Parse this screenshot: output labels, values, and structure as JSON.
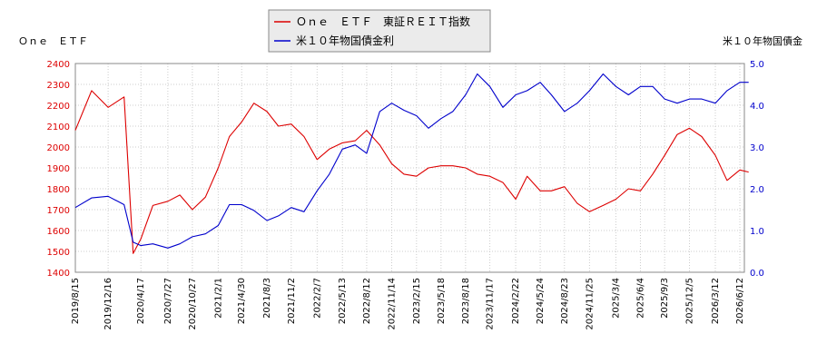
{
  "chart_data": {
    "type": "line",
    "left_axis_title": "Ｏｎｅ　ＥＴＦ",
    "right_axis_title": "米１０年物国債金",
    "legend": [
      {
        "label": "Ｏｎｅ　ＥＴＦ　東証ＲＥＩＴ指数",
        "color": "#dd0000"
      },
      {
        "label": "米１０年物国債金利",
        "color": "#0000cc"
      }
    ],
    "y_left": {
      "min": 1400,
      "max": 2400,
      "ticks": [
        "1400",
        "1500",
        "1600",
        "1700",
        "1800",
        "1900",
        "2000",
        "2100",
        "2200",
        "2300",
        "2400"
      ]
    },
    "y_right": {
      "min": 0.0,
      "max": 5.0,
      "ticks": [
        "0.0",
        "1.0",
        "2.0",
        "3.0",
        "4.0",
        "5.0"
      ]
    },
    "x_ticks": [
      "2019/8/15",
      "2019/12/16",
      "2020/4/17",
      "2020/7/27",
      "2020/10/27",
      "2021/2/1",
      "2021/4/30",
      "2021/8/3",
      "2021/11/2",
      "2022/2/7",
      "2022/5/13",
      "2022/8/12",
      "2022/11/14",
      "2023/2/15",
      "2023/5/18",
      "2023/8/18",
      "2023/11/17",
      "2024/2/22",
      "2024/5/24",
      "2024/8/23",
      "2024/11/25",
      "2025/3/4",
      "2025/6/4",
      "2025/9/3",
      "2025/12/5",
      "2026/3/12",
      "2026/6/12"
    ],
    "grid": true,
    "series": [
      {
        "name": "Ｏｎｅ　ＥＴＦ　東証ＲＥＩＴ指数",
        "color": "#dd0000",
        "axis": "left",
        "x": [
          "2019/8/15",
          "2019/10/15",
          "2019/12/16",
          "2020/2/14",
          "2020/3/19",
          "2020/4/17",
          "2020/6/1",
          "2020/7/27",
          "2020/9/10",
          "2020/10/27",
          "2020/12/15",
          "2021/2/1",
          "2021/3/15",
          "2021/4/30",
          "2021/6/15",
          "2021/8/3",
          "2021/9/15",
          "2021/11/2",
          "2021/12/20",
          "2022/2/7",
          "2022/3/25",
          "2022/5/13",
          "2022/6/30",
          "2022/8/12",
          "2022/9/30",
          "2022/11/14",
          "2022/12/30",
          "2023/2/15",
          "2023/4/1",
          "2023/5/18",
          "2023/7/1",
          "2023/8/18",
          "2023/10/1",
          "2023/11/17",
          "2024/1/5",
          "2024/2/22",
          "2024/4/5",
          "2024/5/24",
          "2024/7/5",
          "2024/8/23",
          "2024/10/10",
          "2024/11/25",
          "2025/1/15",
          "2025/3/4",
          "2025/4/20",
          "2025/6/4",
          "2025/7/20",
          "2025/9/3",
          "2025/10/20",
          "2025/12/5",
          "2026/1/20",
          "2026/3/12",
          "2026/4/25",
          "2026/6/12",
          "2026/7/15"
        ],
        "values": [
          2080,
          2270,
          2190,
          2240,
          1490,
          1560,
          1720,
          1740,
          1770,
          1700,
          1760,
          1900,
          2050,
          2120,
          2210,
          2170,
          2100,
          2110,
          2050,
          1940,
          1990,
          2020,
          2030,
          2080,
          2010,
          1920,
          1870,
          1860,
          1900,
          1910,
          1910,
          1900,
          1870,
          1860,
          1830,
          1750,
          1860,
          1790,
          1790,
          1810,
          1730,
          1690,
          1720,
          1750,
          1800,
          1790,
          1870,
          1960,
          2060,
          2090,
          2050,
          1960,
          1840,
          1890,
          1880
        ]
      },
      {
        "name": "米１０年物国債金利",
        "color": "#0000cc",
        "axis": "right",
        "x": [
          "2019/8/15",
          "2019/10/15",
          "2019/12/16",
          "2020/2/14",
          "2020/3/19",
          "2020/4/17",
          "2020/6/1",
          "2020/7/27",
          "2020/9/10",
          "2020/10/27",
          "2020/12/15",
          "2021/2/1",
          "2021/3/15",
          "2021/4/30",
          "2021/6/15",
          "2021/8/3",
          "2021/9/15",
          "2021/11/2",
          "2021/12/20",
          "2022/2/7",
          "2022/3/25",
          "2022/5/13",
          "2022/6/30",
          "2022/8/12",
          "2022/9/30",
          "2022/11/14",
          "2022/12/30",
          "2023/2/15",
          "2023/4/1",
          "2023/5/18",
          "2023/7/1",
          "2023/8/18",
          "2023/10/1",
          "2023/11/17",
          "2024/1/5",
          "2024/2/22",
          "2024/4/5",
          "2024/5/24",
          "2024/7/5",
          "2024/8/23",
          "2024/10/10",
          "2024/11/25",
          "2025/1/15",
          "2025/3/4",
          "2025/4/20",
          "2025/6/4",
          "2025/7/20",
          "2025/9/3",
          "2025/10/20",
          "2025/12/5",
          "2026/1/20",
          "2026/3/12",
          "2026/4/25",
          "2026/6/12",
          "2026/7/15"
        ],
        "values": [
          1.55,
          1.78,
          1.82,
          1.62,
          0.72,
          0.64,
          0.68,
          0.58,
          0.68,
          0.85,
          0.92,
          1.12,
          1.62,
          1.62,
          1.48,
          1.24,
          1.35,
          1.55,
          1.45,
          1.95,
          2.35,
          2.95,
          3.05,
          2.85,
          3.85,
          4.05,
          3.88,
          3.75,
          3.45,
          3.68,
          3.85,
          4.25,
          4.75,
          4.45,
          3.95,
          4.25,
          4.35,
          4.55,
          4.25,
          3.85,
          4.05,
          4.35,
          4.75,
          4.45,
          4.25,
          4.45,
          4.45,
          4.15,
          4.05,
          4.15,
          4.15,
          4.05,
          4.35,
          4.55,
          4.55
        ]
      }
    ]
  }
}
